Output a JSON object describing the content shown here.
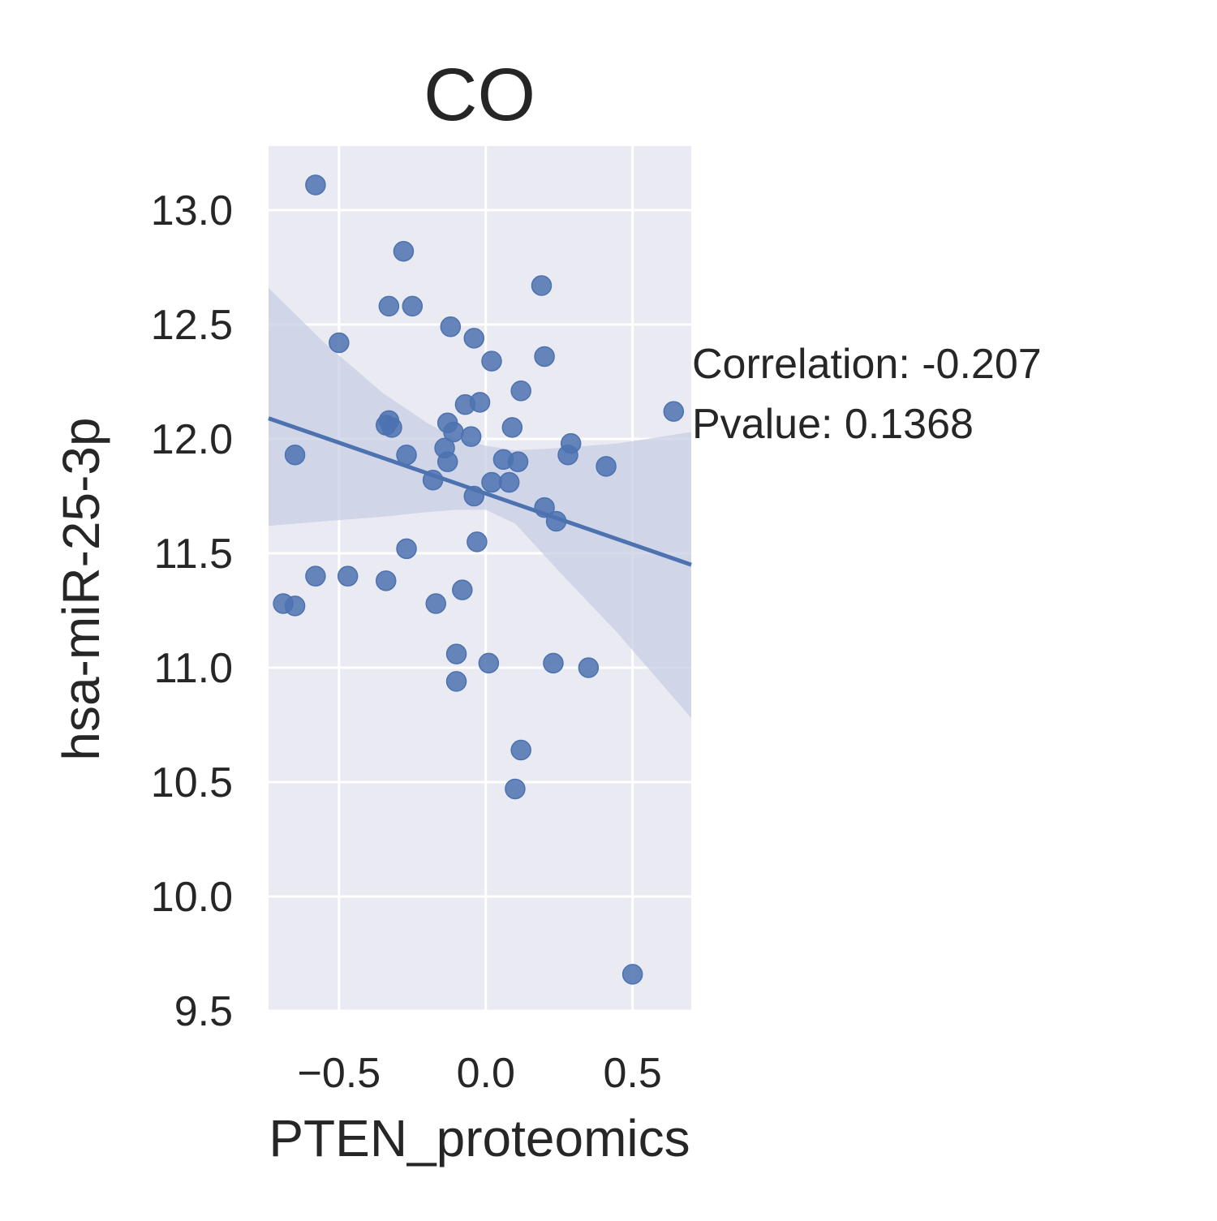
{
  "chart_data": {
    "type": "scatter",
    "title": "CO",
    "xlabel": "PTEN_proteomics",
    "ylabel": "hsa-miR-25-3p",
    "xlim": [
      -0.74,
      0.7
    ],
    "ylim": [
      9.5,
      13.28
    ],
    "xticks": [
      {
        "value": -0.5,
        "label": "−0.5"
      },
      {
        "value": 0.0,
        "label": "0.0"
      },
      {
        "value": 0.5,
        "label": "0.5"
      }
    ],
    "yticks": [
      {
        "value": 9.5,
        "label": "9.5"
      },
      {
        "value": 10.0,
        "label": "10.0"
      },
      {
        "value": 10.5,
        "label": "10.5"
      },
      {
        "value": 11.0,
        "label": "11.0"
      },
      {
        "value": 11.5,
        "label": "11.5"
      },
      {
        "value": 12.0,
        "label": "12.0"
      },
      {
        "value": 12.5,
        "label": "12.5"
      },
      {
        "value": 13.0,
        "label": "13.0"
      }
    ],
    "grid": true,
    "colors": {
      "points": "#4c72b0",
      "line": "#4c72b0",
      "band": "#c7cfe3",
      "background": "#eaeaf2",
      "grid": "#ffffff"
    },
    "annotations": [
      "Correlation: -0.207",
      "Pvalue: 0.1368"
    ],
    "points": [
      {
        "x": -0.58,
        "y": 13.11
      },
      {
        "x": -0.28,
        "y": 12.82
      },
      {
        "x": 0.19,
        "y": 12.67
      },
      {
        "x": -0.33,
        "y": 12.58
      },
      {
        "x": -0.25,
        "y": 12.58
      },
      {
        "x": -0.12,
        "y": 12.49
      },
      {
        "x": -0.04,
        "y": 12.44
      },
      {
        "x": -0.5,
        "y": 12.42
      },
      {
        "x": 0.02,
        "y": 12.34
      },
      {
        "x": 0.2,
        "y": 12.36
      },
      {
        "x": 0.12,
        "y": 12.21
      },
      {
        "x": -0.07,
        "y": 12.15
      },
      {
        "x": -0.02,
        "y": 12.16
      },
      {
        "x": 0.64,
        "y": 12.12
      },
      {
        "x": -0.33,
        "y": 12.08
      },
      {
        "x": -0.32,
        "y": 12.05
      },
      {
        "x": -0.34,
        "y": 12.06
      },
      {
        "x": -0.13,
        "y": 12.07
      },
      {
        "x": -0.11,
        "y": 12.03
      },
      {
        "x": 0.09,
        "y": 12.05
      },
      {
        "x": -0.05,
        "y": 12.01
      },
      {
        "x": 0.29,
        "y": 11.98
      },
      {
        "x": -0.14,
        "y": 11.96
      },
      {
        "x": -0.65,
        "y": 11.93
      },
      {
        "x": -0.27,
        "y": 11.93
      },
      {
        "x": 0.28,
        "y": 11.93
      },
      {
        "x": -0.13,
        "y": 11.9
      },
      {
        "x": 0.06,
        "y": 11.91
      },
      {
        "x": 0.11,
        "y": 11.9
      },
      {
        "x": 0.41,
        "y": 11.88
      },
      {
        "x": -0.18,
        "y": 11.82
      },
      {
        "x": 0.02,
        "y": 11.81
      },
      {
        "x": 0.08,
        "y": 11.81
      },
      {
        "x": -0.04,
        "y": 11.75
      },
      {
        "x": 0.2,
        "y": 11.7
      },
      {
        "x": 0.24,
        "y": 11.64
      },
      {
        "x": -0.03,
        "y": 11.55
      },
      {
        "x": -0.27,
        "y": 11.52
      },
      {
        "x": -0.58,
        "y": 11.4
      },
      {
        "x": -0.47,
        "y": 11.4
      },
      {
        "x": -0.34,
        "y": 11.38
      },
      {
        "x": -0.08,
        "y": 11.34
      },
      {
        "x": -0.69,
        "y": 11.28
      },
      {
        "x": -0.65,
        "y": 11.27
      },
      {
        "x": -0.17,
        "y": 11.28
      },
      {
        "x": -0.1,
        "y": 11.06
      },
      {
        "x": 0.01,
        "y": 11.02
      },
      {
        "x": 0.23,
        "y": 11.02
      },
      {
        "x": 0.35,
        "y": 11.0
      },
      {
        "x": -0.1,
        "y": 10.94
      },
      {
        "x": 0.12,
        "y": 10.64
      },
      {
        "x": 0.1,
        "y": 10.47
      },
      {
        "x": 0.5,
        "y": 9.66
      }
    ],
    "regression": {
      "x": [
        -0.74,
        0.7
      ],
      "y": [
        12.09,
        11.45
      ]
    },
    "confidence_band": {
      "x": [
        -0.74,
        -0.55,
        -0.35,
        -0.2,
        -0.1,
        0.0,
        0.1,
        0.25,
        0.45,
        0.7
      ],
      "upper": [
        12.66,
        12.42,
        12.2,
        12.07,
        12.0,
        11.97,
        11.95,
        11.96,
        11.98,
        12.03
      ],
      "lower": [
        11.62,
        11.64,
        11.66,
        11.68,
        11.69,
        11.69,
        11.63,
        11.42,
        11.15,
        10.78
      ]
    }
  }
}
